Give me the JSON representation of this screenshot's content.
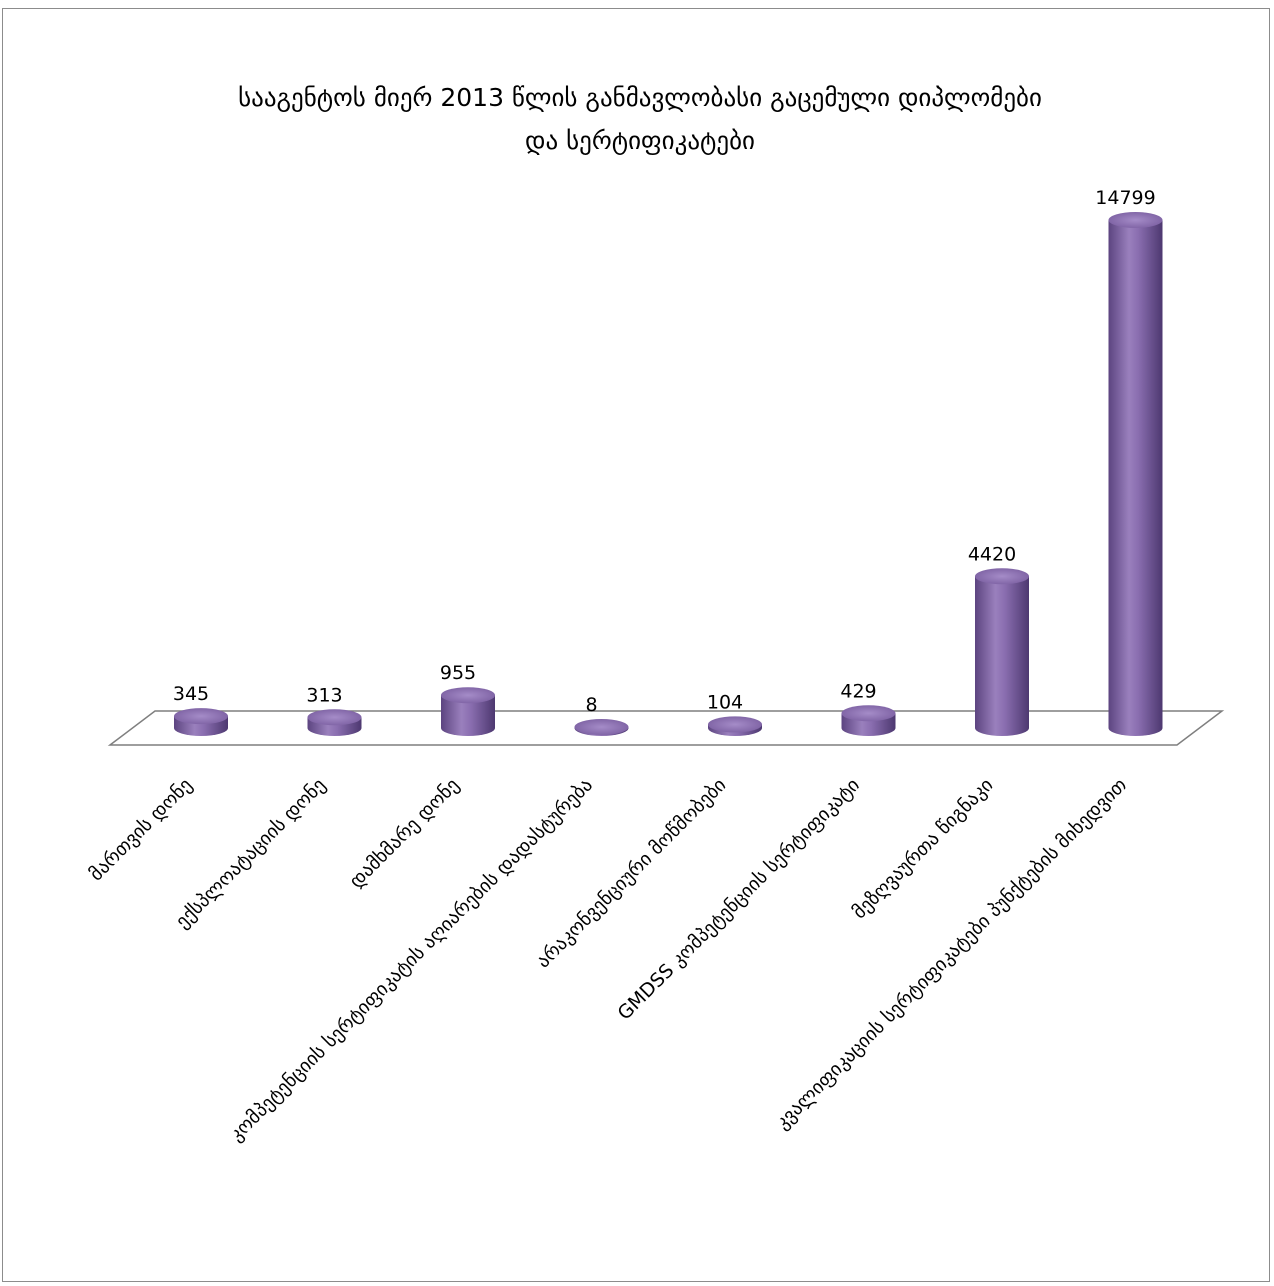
{
  "chart_data": {
    "type": "bar",
    "title_lines": [
      "სააგენტოს მიერ 2013 წლის განმავლობასი გაცემული დიპლომები",
      "და სერტიფიკატები"
    ],
    "categories": [
      "მართვის დონე",
      "ექსპლოატაციის დონე",
      "დამხმარე დონე",
      "კომპეტენციის სერტიფიკატის აღიარების დადასტურება",
      "არაკონვენციური მოწმობები",
      "GMDSS  კომპეტენციის სერტიფიკატი",
      "მეზღვაურთა წიგნაკი",
      "კვალიფიკაციის სერტიფიკატები პუნქტების მიხედვით"
    ],
    "values": [
      345,
      313,
      955,
      8,
      104,
      429,
      4420,
      14799
    ],
    "ylim": [
      0,
      14799
    ],
    "grid": false,
    "legend": "none",
    "bar_shape": "3d-cylinder",
    "colors": {
      "bar": "#8064a2",
      "bar_dark": "#4f3a6e",
      "bar_light": "#b59fd0",
      "floor_stroke": "#7f7f7f"
    }
  }
}
